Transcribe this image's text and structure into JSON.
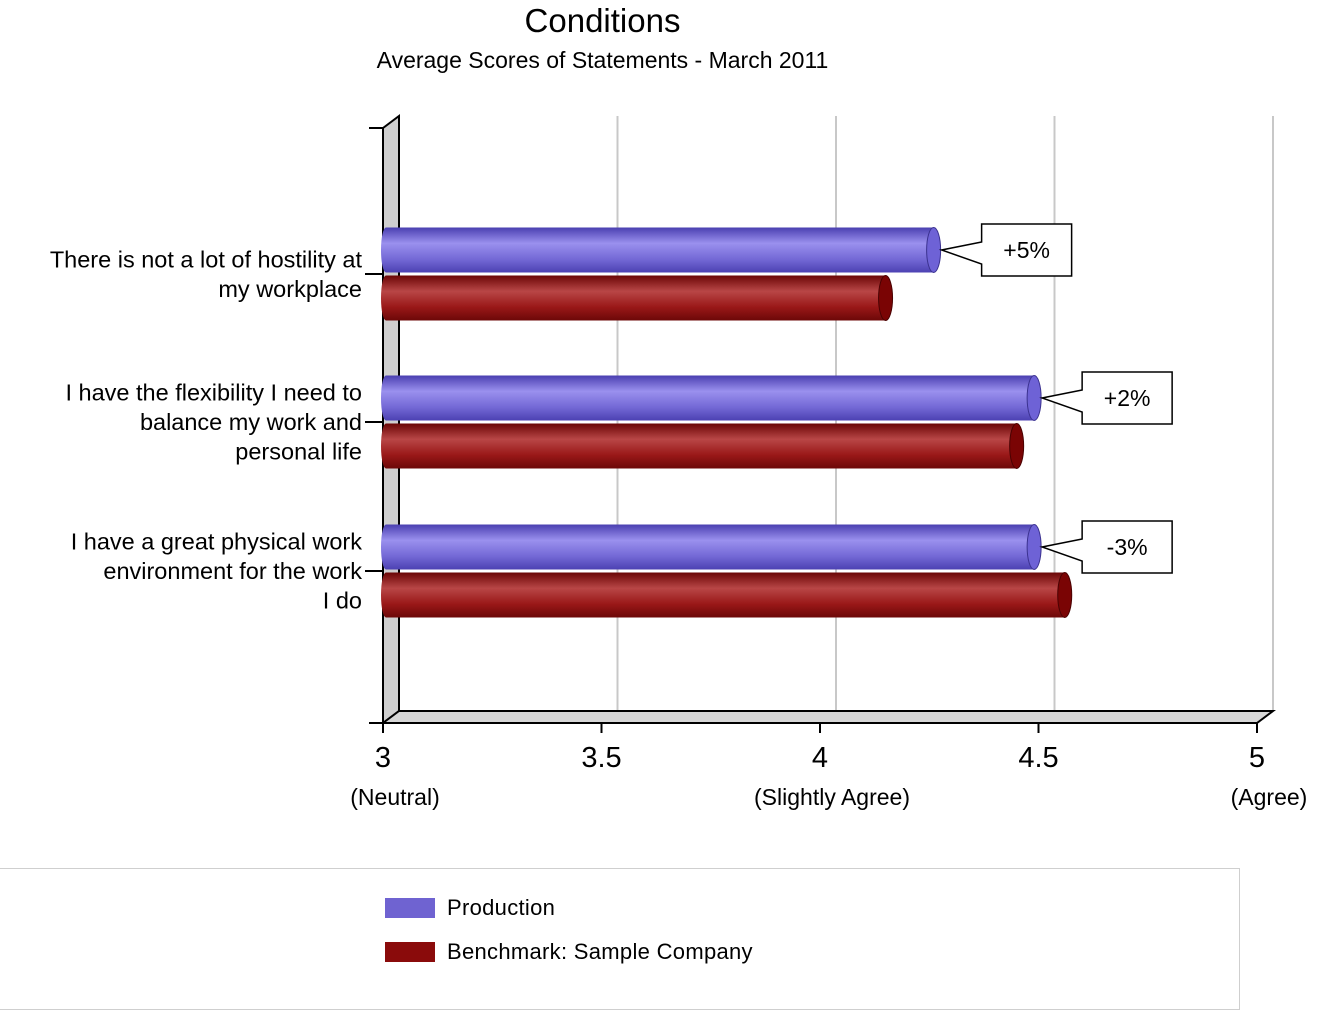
{
  "title": "Conditions",
  "subtitle": "Average Scores of Statements - March 2011",
  "colors": {
    "production": "#6f63d1",
    "benchmark": "#8a0b0b",
    "grid": "#c8c8c8"
  },
  "chart_data": {
    "type": "bar",
    "orientation": "horizontal",
    "title": "Conditions",
    "subtitle": "Average Scores of Statements - March 2011",
    "categories": [
      [
        "There is not a lot of hostility at",
        "my workplace"
      ],
      [
        "I have the flexibility I need to",
        "balance my work and",
        "personal life"
      ],
      [
        "I have a great physical work",
        "environment for the work",
        "I do"
      ]
    ],
    "series": [
      {
        "name": "Production",
        "values": [
          4.26,
          4.49,
          4.49
        ]
      },
      {
        "name": "Benchmark: Sample Company",
        "values": [
          4.15,
          4.45,
          4.56
        ]
      }
    ],
    "annotations": [
      "+5%",
      "+2%",
      "-3%"
    ],
    "xlim": [
      3,
      5
    ],
    "ticks": [
      {
        "value": 3,
        "label": "3",
        "sublabel": "(Neutral)"
      },
      {
        "value": 3.5,
        "label": "3.5",
        "sublabel": ""
      },
      {
        "value": 4,
        "label": "4",
        "sublabel": "(Slightly Agree)"
      },
      {
        "value": 4.5,
        "label": "4.5",
        "sublabel": ""
      },
      {
        "value": 5,
        "label": "5",
        "sublabel": "(Agree)"
      }
    ],
    "grid": true,
    "legend_position": "bottom"
  }
}
